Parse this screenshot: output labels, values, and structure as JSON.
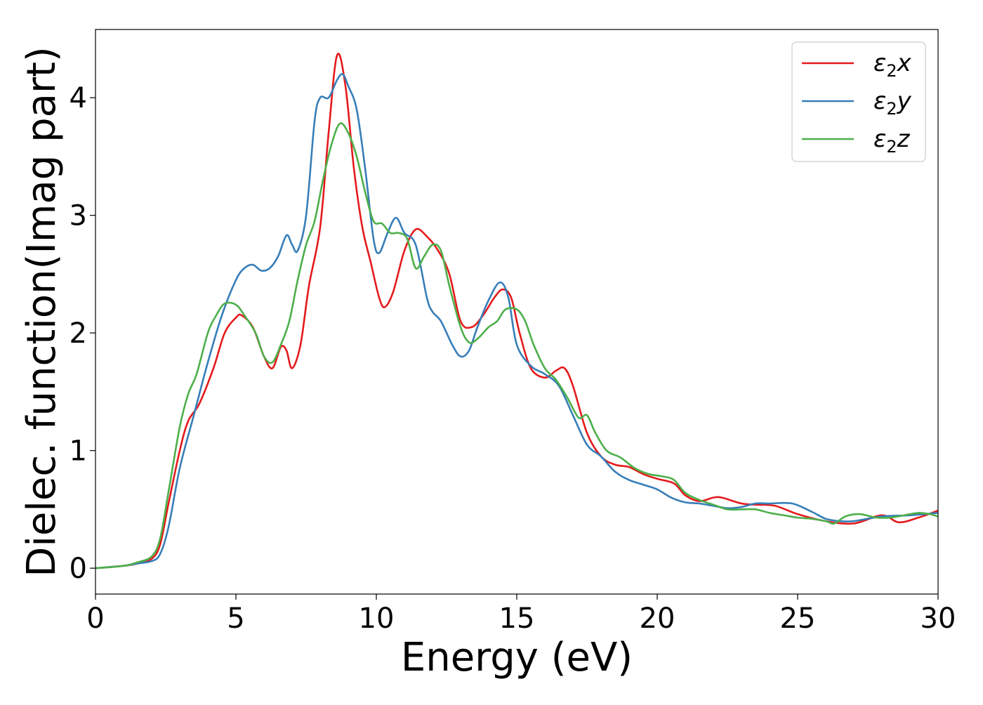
{
  "chart_data": {
    "type": "line",
    "xlabel": "Energy (eV)",
    "ylabel": "Dielec. function(Imag part)",
    "xlim": [
      0,
      30
    ],
    "ylim": [
      -0.22,
      4.58
    ],
    "xticks": [
      0,
      5,
      10,
      15,
      20,
      25,
      30
    ],
    "yticks": [
      0,
      1,
      2,
      3,
      4
    ],
    "grid": false,
    "legend_position": "upper right",
    "series": [
      {
        "name": "ε₂x",
        "legend_base": "ε",
        "legend_sub": "2",
        "legend_suffix": "x",
        "color": "#e41a1c",
        "x": [
          0,
          1,
          1.5,
          2,
          2.3,
          2.6,
          3,
          3.3,
          3.7,
          4.2,
          4.6,
          5.0,
          5.2,
          5.6,
          6.0,
          6.3,
          6.6,
          6.8,
          7.0,
          7.3,
          7.6,
          8.0,
          8.3,
          8.6,
          8.9,
          9.2,
          9.5,
          9.8,
          10.1,
          10.3,
          10.6,
          11.0,
          11.4,
          11.8,
          12.2,
          12.6,
          13.0,
          13.4,
          13.8,
          14.2,
          14.5,
          14.8,
          15.1,
          15.5,
          16.0,
          16.4,
          16.7,
          17.0,
          17.5,
          18.0,
          18.5,
          19.0,
          19.5,
          20.0,
          20.6,
          21.0,
          21.5,
          22.0,
          22.3,
          23.0,
          23.5,
          24.2,
          25.0,
          26.0,
          27.0,
          28.0,
          28.6,
          29.3,
          30.0
        ],
        "values": [
          0,
          0.02,
          0.04,
          0.08,
          0.2,
          0.55,
          1.0,
          1.25,
          1.4,
          1.7,
          2.0,
          2.13,
          2.15,
          2.05,
          1.8,
          1.7,
          1.88,
          1.85,
          1.7,
          1.9,
          2.4,
          2.9,
          3.7,
          4.36,
          4.1,
          3.4,
          2.9,
          2.6,
          2.3,
          2.22,
          2.35,
          2.7,
          2.88,
          2.82,
          2.7,
          2.5,
          2.1,
          2.05,
          2.15,
          2.3,
          2.37,
          2.3,
          2.0,
          1.7,
          1.62,
          1.68,
          1.7,
          1.55,
          1.15,
          0.95,
          0.88,
          0.86,
          0.8,
          0.76,
          0.72,
          0.62,
          0.57,
          0.6,
          0.6,
          0.55,
          0.54,
          0.53,
          0.46,
          0.4,
          0.38,
          0.45,
          0.39,
          0.43,
          0.49
        ]
      },
      {
        "name": "ε₂y",
        "legend_base": "ε",
        "legend_sub": "2",
        "legend_suffix": "y",
        "color": "#377eb8",
        "x": [
          0,
          1,
          1.5,
          2,
          2.3,
          2.6,
          3,
          3.5,
          4.0,
          4.5,
          5.0,
          5.3,
          5.6,
          5.9,
          6.2,
          6.5,
          6.8,
          7.0,
          7.2,
          7.5,
          7.8,
          8.0,
          8.3,
          8.6,
          8.8,
          9.0,
          9.3,
          9.6,
          9.9,
          10.1,
          10.4,
          10.7,
          11.0,
          11.4,
          11.8,
          12.0,
          12.3,
          12.7,
          13.0,
          13.3,
          13.6,
          14.0,
          14.4,
          14.7,
          15.0,
          15.5,
          16.0,
          16.5,
          17.0,
          17.5,
          18.0,
          18.5,
          19.0,
          19.5,
          20.0,
          20.5,
          21.0,
          21.5,
          22.0,
          22.5,
          23.0,
          23.5,
          24.0,
          24.8,
          25.5,
          26.0,
          26.5,
          27.0,
          28.0,
          29.0,
          30.0
        ],
        "values": [
          0,
          0.02,
          0.04,
          0.06,
          0.12,
          0.35,
          0.85,
          1.3,
          1.75,
          2.15,
          2.45,
          2.55,
          2.58,
          2.53,
          2.55,
          2.65,
          2.83,
          2.75,
          2.7,
          3.0,
          3.8,
          4.0,
          4.0,
          4.15,
          4.2,
          4.1,
          3.9,
          3.4,
          2.8,
          2.68,
          2.85,
          2.98,
          2.85,
          2.75,
          2.3,
          2.18,
          2.1,
          1.9,
          1.8,
          1.85,
          2.05,
          2.28,
          2.43,
          2.3,
          1.9,
          1.72,
          1.65,
          1.55,
          1.3,
          1.05,
          0.95,
          0.82,
          0.75,
          0.71,
          0.67,
          0.6,
          0.56,
          0.55,
          0.53,
          0.51,
          0.52,
          0.55,
          0.55,
          0.55,
          0.48,
          0.42,
          0.4,
          0.4,
          0.44,
          0.45,
          0.47
        ]
      },
      {
        "name": "ε₂z",
        "legend_base": "ε",
        "legend_sub": "2",
        "legend_suffix": "z",
        "color": "#4daf4a",
        "x": [
          0,
          1,
          1.5,
          2,
          2.3,
          2.6,
          3.0,
          3.3,
          3.6,
          4.0,
          4.3,
          4.6,
          5.0,
          5.3,
          5.7,
          6.0,
          6.3,
          6.6,
          6.9,
          7.2,
          7.5,
          7.8,
          8.1,
          8.4,
          8.7,
          9.0,
          9.3,
          9.6,
          9.9,
          10.2,
          10.5,
          10.8,
          11.1,
          11.4,
          11.7,
          12.0,
          12.3,
          12.6,
          13.0,
          13.3,
          13.6,
          14.0,
          14.3,
          14.6,
          15.0,
          15.3,
          15.6,
          16.0,
          16.4,
          16.8,
          17.2,
          17.5,
          17.8,
          18.2,
          18.7,
          19.2,
          19.7,
          20.2,
          20.6,
          21.0,
          21.5,
          22.0,
          22.5,
          23.0,
          23.5,
          24.0,
          24.5,
          25.0,
          25.5,
          26.0,
          26.3,
          26.7,
          27.2,
          27.8,
          28.3,
          28.8,
          29.3,
          29.7,
          30.0
        ],
        "values": [
          0,
          0.02,
          0.05,
          0.1,
          0.25,
          0.65,
          1.2,
          1.48,
          1.65,
          2.0,
          2.15,
          2.25,
          2.24,
          2.15,
          2.0,
          1.8,
          1.75,
          1.9,
          2.1,
          2.45,
          2.75,
          2.95,
          3.3,
          3.6,
          3.78,
          3.7,
          3.5,
          3.2,
          2.95,
          2.93,
          2.85,
          2.85,
          2.8,
          2.55,
          2.65,
          2.75,
          2.7,
          2.4,
          2.05,
          1.92,
          1.95,
          2.05,
          2.1,
          2.2,
          2.2,
          2.1,
          1.9,
          1.7,
          1.6,
          1.45,
          1.28,
          1.3,
          1.15,
          1.0,
          0.94,
          0.85,
          0.8,
          0.78,
          0.75,
          0.64,
          0.58,
          0.54,
          0.5,
          0.5,
          0.5,
          0.47,
          0.45,
          0.43,
          0.42,
          0.4,
          0.38,
          0.44,
          0.46,
          0.43,
          0.43,
          0.45,
          0.47,
          0.46,
          0.44
        ]
      }
    ]
  }
}
